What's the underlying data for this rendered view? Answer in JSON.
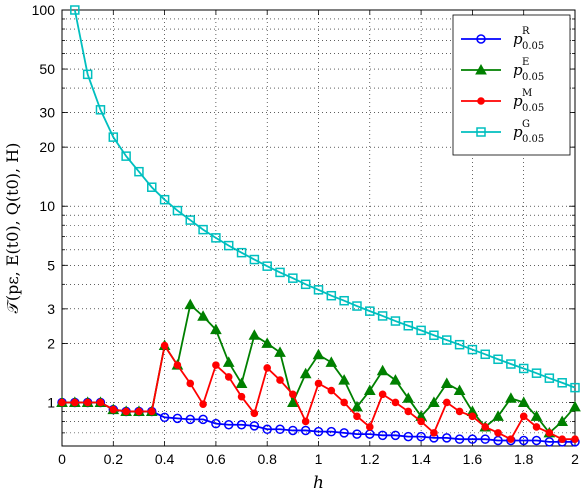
{
  "chart_data": {
    "type": "line",
    "xlabel": "h",
    "ylabel": "𝒯(pε, E(t0), Q(t0), H)",
    "xlim": [
      0,
      2
    ],
    "ylim": [
      0.6,
      100
    ],
    "yscale": "log",
    "grid": true,
    "legend": "top-right",
    "x_ticks": [
      "0",
      "0.2",
      "0.4",
      "0.6",
      "0.8",
      "1",
      "1.2",
      "1.4",
      "1.6",
      "1.8",
      "2"
    ],
    "y_ticks": [
      "1",
      "2",
      "3",
      "5",
      "10",
      "20",
      "30",
      "50",
      "100"
    ],
    "series": [
      {
        "name": "p",
        "sup": "R",
        "sub": "0.05",
        "color": "#0000ff",
        "marker": "circle",
        "x": [
          0,
          0.05,
          0.1,
          0.15,
          0.2,
          0.25,
          0.3,
          0.35,
          0.4,
          0.45,
          0.5,
          0.55,
          0.6,
          0.65,
          0.7,
          0.75,
          0.8,
          0.85,
          0.9,
          0.95,
          1,
          1.05,
          1.1,
          1.15,
          1.2,
          1.25,
          1.3,
          1.35,
          1.4,
          1.45,
          1.5,
          1.55,
          1.6,
          1.65,
          1.7,
          1.75,
          1.8,
          1.85,
          1.9,
          1.95,
          2
        ],
        "y": [
          1.0,
          1.0,
          1.0,
          1.0,
          0.92,
          0.9,
          0.9,
          0.9,
          0.84,
          0.83,
          0.82,
          0.82,
          0.78,
          0.77,
          0.77,
          0.76,
          0.73,
          0.73,
          0.72,
          0.72,
          0.71,
          0.71,
          0.7,
          0.69,
          0.69,
          0.68,
          0.68,
          0.67,
          0.67,
          0.66,
          0.66,
          0.65,
          0.65,
          0.65,
          0.64,
          0.64,
          0.64,
          0.64,
          0.63,
          0.63,
          0.63
        ]
      },
      {
        "name": "p",
        "sup": "E",
        "sub": "0.05",
        "color": "#008000",
        "marker": "triangle",
        "x": [
          0,
          0.05,
          0.1,
          0.15,
          0.2,
          0.25,
          0.3,
          0.35,
          0.4,
          0.45,
          0.5,
          0.55,
          0.6,
          0.65,
          0.7,
          0.75,
          0.8,
          0.85,
          0.9,
          0.95,
          1,
          1.05,
          1.1,
          1.15,
          1.2,
          1.25,
          1.3,
          1.35,
          1.4,
          1.45,
          1.5,
          1.55,
          1.6,
          1.65,
          1.7,
          1.75,
          1.8,
          1.85,
          1.9,
          1.95,
          2
        ],
        "y": [
          1.0,
          1.0,
          1.0,
          1.0,
          0.92,
          0.9,
          0.9,
          0.9,
          1.95,
          1.55,
          3.15,
          2.75,
          2.35,
          1.6,
          1.25,
          2.2,
          2.0,
          1.8,
          1.0,
          1.4,
          1.75,
          1.6,
          1.3,
          0.95,
          1.15,
          1.45,
          1.3,
          1.05,
          0.85,
          1.0,
          1.25,
          1.15,
          0.9,
          0.75,
          0.85,
          1.05,
          1.0,
          0.85,
          0.7,
          0.8,
          0.95
        ]
      },
      {
        "name": "p",
        "sup": "M",
        "sub": "0.05",
        "color": "#ff0000",
        "marker": "dot",
        "x": [
          0,
          0.05,
          0.1,
          0.15,
          0.2,
          0.25,
          0.3,
          0.35,
          0.4,
          0.45,
          0.5,
          0.55,
          0.6,
          0.65,
          0.7,
          0.75,
          0.8,
          0.85,
          0.9,
          0.95,
          1,
          1.05,
          1.1,
          1.15,
          1.2,
          1.25,
          1.3,
          1.35,
          1.4,
          1.45,
          1.5,
          1.55,
          1.6,
          1.65,
          1.7,
          1.75,
          1.8,
          1.85,
          1.9,
          1.95,
          2
        ],
        "y": [
          1.0,
          1.0,
          1.0,
          1.0,
          0.92,
          0.9,
          0.9,
          0.9,
          1.95,
          1.55,
          1.25,
          0.98,
          1.55,
          1.35,
          1.07,
          0.88,
          1.5,
          1.3,
          1.1,
          0.8,
          1.25,
          1.15,
          1.0,
          0.85,
          0.75,
          1.1,
          1.0,
          0.9,
          0.8,
          0.7,
          1.0,
          0.9,
          0.85,
          0.75,
          0.7,
          0.65,
          0.85,
          0.75,
          0.7,
          0.65,
          0.65
        ]
      },
      {
        "name": "p",
        "sup": "G",
        "sub": "0.05",
        "color": "#00bfbf",
        "marker": "square",
        "x": [
          0.05,
          0.1,
          0.15,
          0.2,
          0.25,
          0.3,
          0.35,
          0.4,
          0.45,
          0.5,
          0.55,
          0.6,
          0.65,
          0.7,
          0.75,
          0.8,
          0.85,
          0.9,
          0.95,
          1,
          1.05,
          1.1,
          1.15,
          1.2,
          1.25,
          1.3,
          1.35,
          1.4,
          1.45,
          1.5,
          1.55,
          1.6,
          1.65,
          1.7,
          1.75,
          1.8,
          1.85,
          1.9,
          1.95,
          2
        ],
        "y": [
          100,
          47,
          31,
          22.5,
          18,
          15,
          12.5,
          10.8,
          9.5,
          8.5,
          7.6,
          6.9,
          6.3,
          5.8,
          5.35,
          4.95,
          4.6,
          4.3,
          4.0,
          3.75,
          3.5,
          3.3,
          3.1,
          2.92,
          2.76,
          2.6,
          2.46,
          2.33,
          2.2,
          2.08,
          1.97,
          1.86,
          1.76,
          1.66,
          1.57,
          1.49,
          1.41,
          1.33,
          1.26,
          1.19
        ]
      }
    ]
  }
}
